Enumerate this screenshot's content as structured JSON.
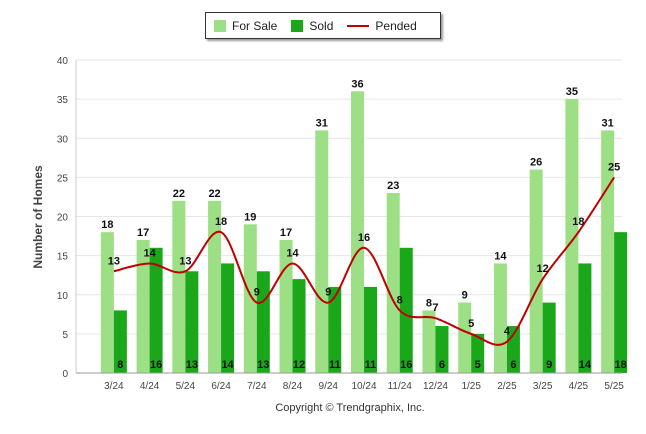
{
  "legend": [
    {
      "name": "For Sale",
      "color": "#9ddf85",
      "kind": "bar"
    },
    {
      "name": "Sold",
      "color": "#1aa81a",
      "kind": "bar"
    },
    {
      "name": "Pended",
      "color": "#c00000",
      "kind": "line"
    }
  ],
  "credit": "Copyright © Trendgraphix, Inc.",
  "chart_data": {
    "type": "bar",
    "ylabel": "Number of Homes",
    "ylim": [
      0,
      40
    ],
    "yticks": [
      0,
      5,
      10,
      15,
      20,
      25,
      30,
      35,
      40
    ],
    "grid": true,
    "legend_position": "top-center",
    "categories": [
      "3/24",
      "4/24",
      "5/24",
      "6/24",
      "7/24",
      "8/24",
      "9/24",
      "10/24",
      "11/24",
      "12/24",
      "1/25",
      "2/25",
      "3/25",
      "4/25",
      "5/25"
    ],
    "series": [
      {
        "name": "For Sale",
        "type": "bar",
        "color": "#9ddf85",
        "values": [
          18,
          17,
          22,
          22,
          19,
          17,
          31,
          36,
          23,
          8,
          9,
          14,
          26,
          35,
          31
        ]
      },
      {
        "name": "Sold",
        "type": "bar",
        "color": "#1aa81a",
        "values": [
          8,
          16,
          13,
          14,
          13,
          12,
          11,
          11,
          16,
          6,
          5,
          6,
          9,
          14,
          18
        ]
      },
      {
        "name": "Pended",
        "type": "line",
        "color": "#c00000",
        "values": [
          13,
          14,
          13,
          18,
          9,
          14,
          9,
          16,
          8,
          7,
          5,
          4,
          12,
          18,
          25
        ]
      }
    ]
  }
}
